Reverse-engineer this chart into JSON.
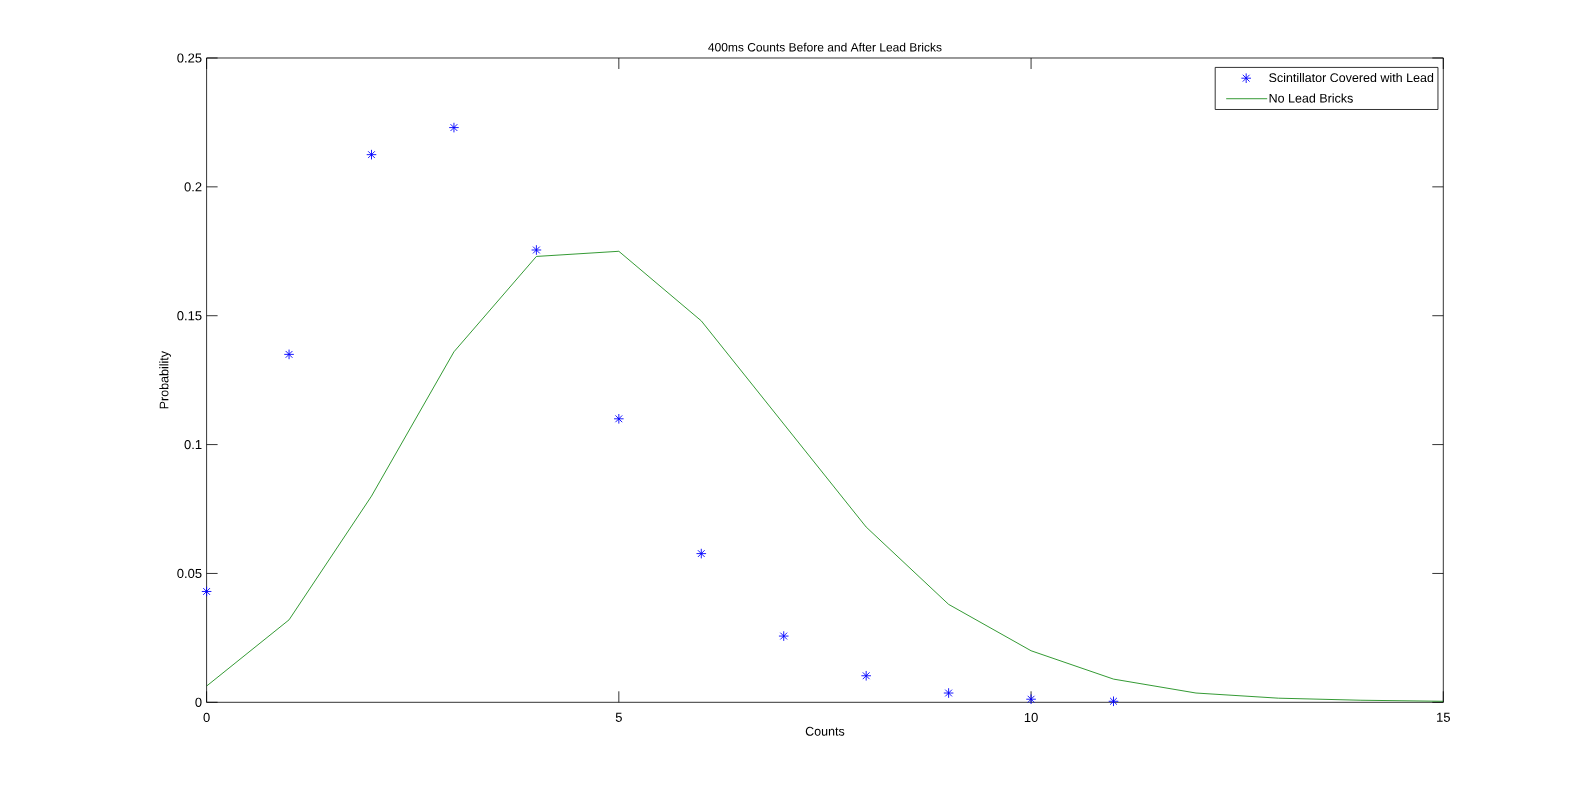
{
  "chart_data": {
    "type": "line",
    "title": "400ms Counts Before and After Lead Bricks",
    "xlabel": "Counts",
    "ylabel": "Probability",
    "xlim": [
      0,
      15
    ],
    "ylim": [
      0,
      0.25
    ],
    "xticks": [
      0,
      5,
      10,
      15
    ],
    "yticks": [
      0,
      0.05,
      0.1,
      0.15,
      0.2,
      0.25
    ],
    "legend": "top right",
    "series": [
      {
        "name": "Scintillator Covered with Lead",
        "type": "scatter",
        "marker": "cross",
        "color": "#0000ff",
        "x": [
          0,
          1,
          2,
          3,
          4,
          5,
          6,
          7,
          8,
          9,
          10,
          11
        ],
        "values": [
          0.043,
          0.135,
          0.2125,
          0.223,
          0.1755,
          0.11,
          0.0577,
          0.0257,
          0.0103,
          0.0036,
          0.0012,
          0.0004
        ]
      },
      {
        "name": "No Lead Bricks",
        "type": "line",
        "line_style": "solid",
        "color": "#008000",
        "x": [
          0,
          1,
          2,
          3,
          4,
          5,
          6,
          7,
          8,
          9,
          10,
          11,
          12,
          13,
          14,
          15
        ],
        "values": [
          0.0063,
          0.032,
          0.08,
          0.136,
          0.173,
          0.175,
          0.148,
          0.108,
          0.068,
          0.038,
          0.02,
          0.009,
          0.0036,
          0.0016,
          0.0008,
          0.0004
        ]
      }
    ]
  }
}
